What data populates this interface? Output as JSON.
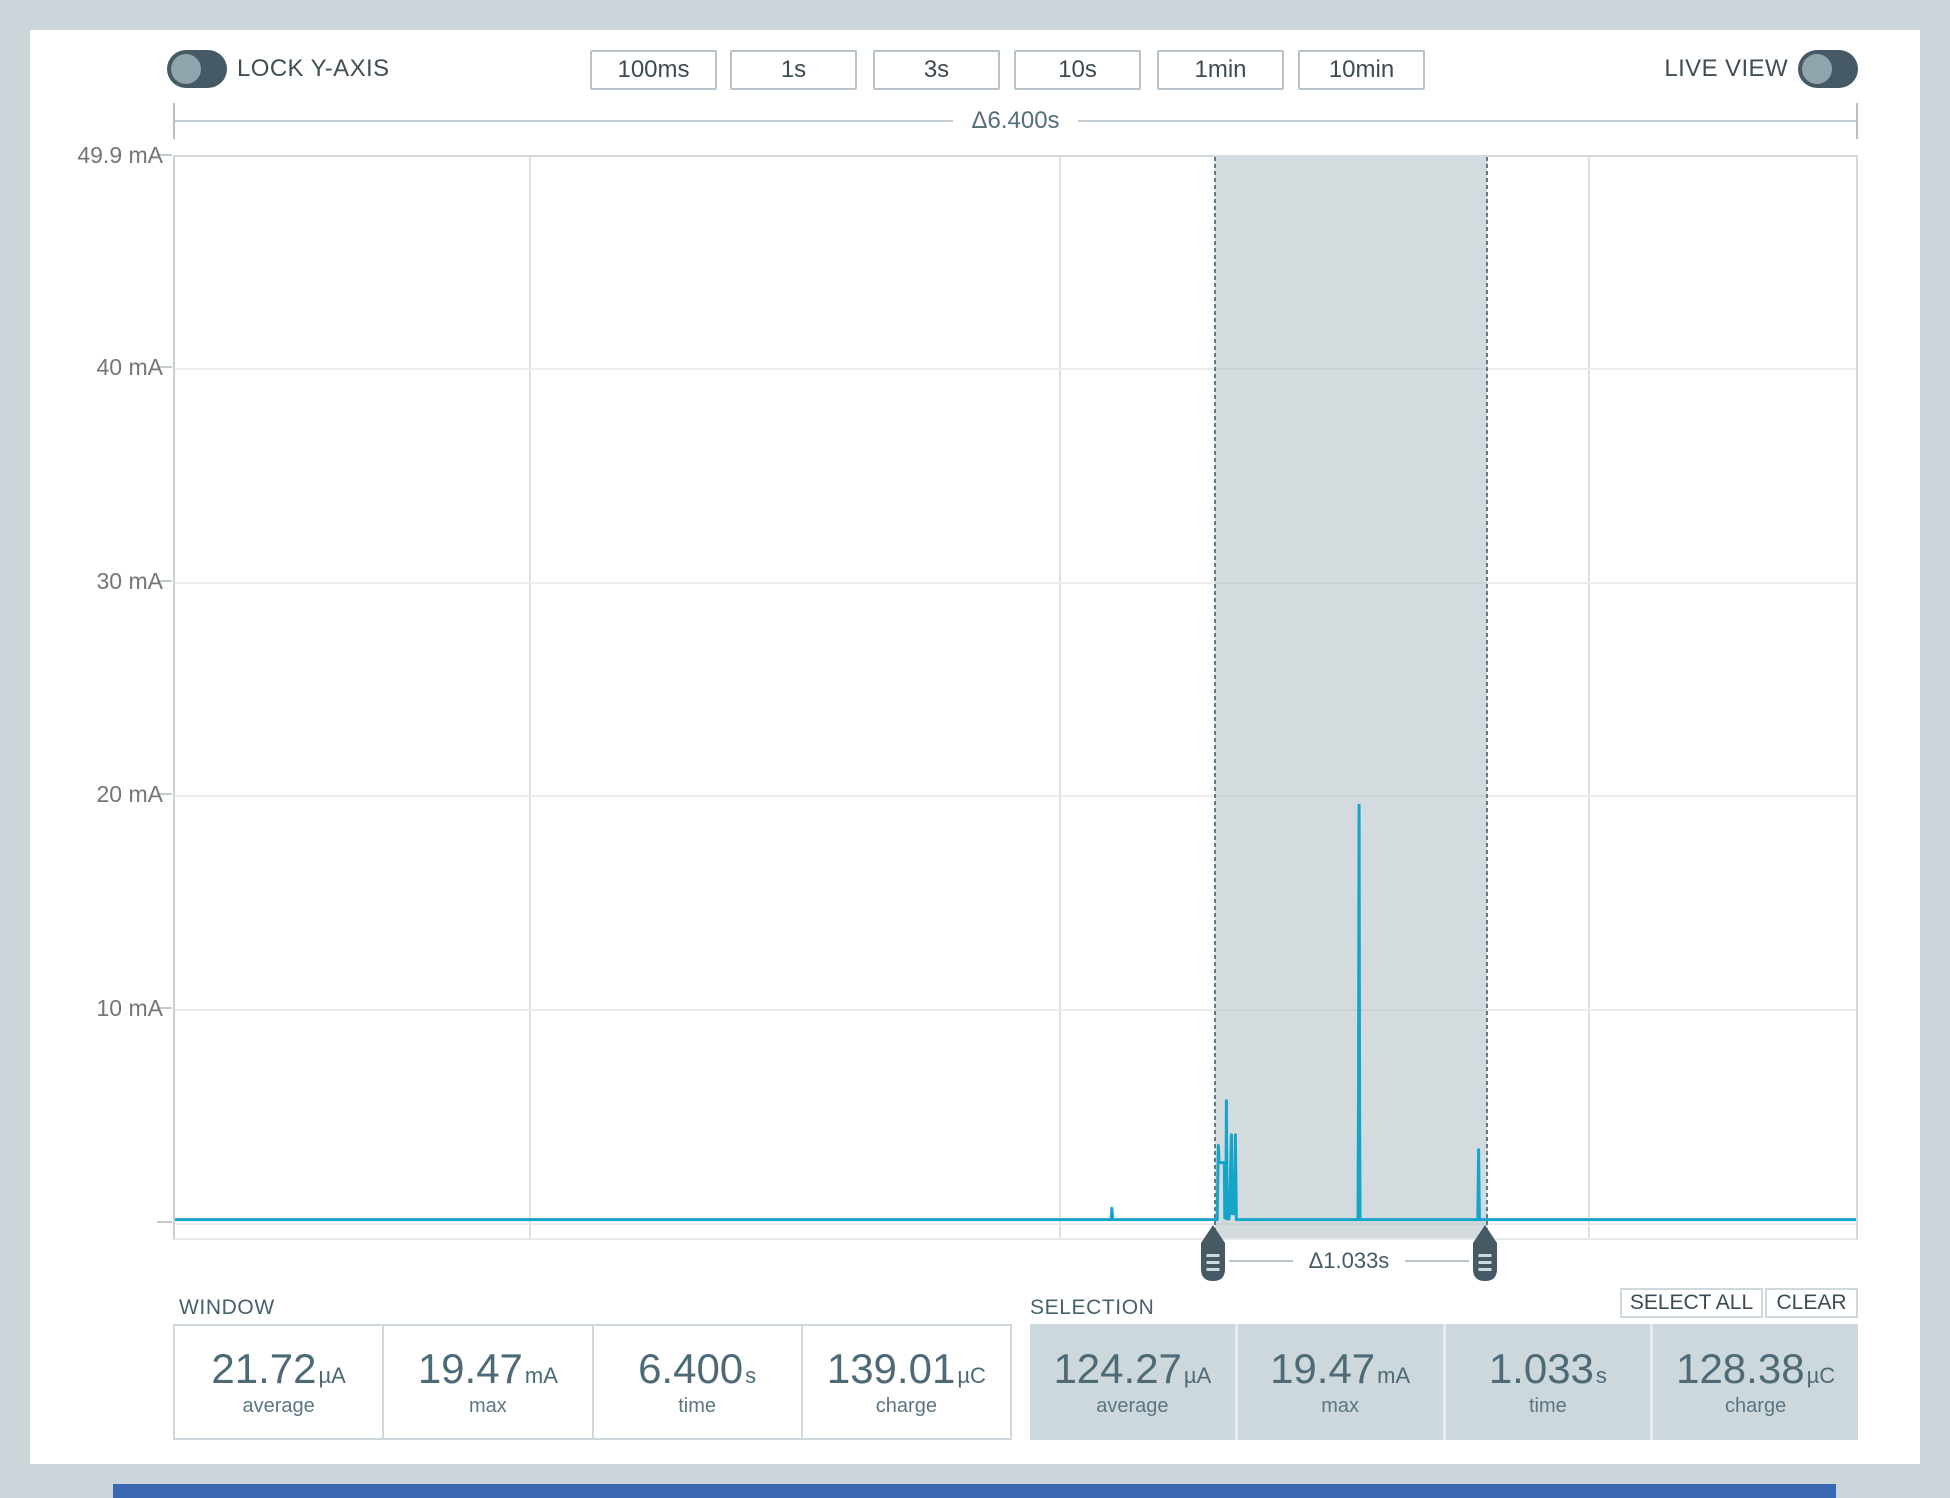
{
  "colors": {
    "background": "#ccd5da",
    "card": "#ffffff",
    "trace": "#14a5c9",
    "selection_fill": "rgba(176,190,197,0.55)",
    "selection_edge": "#5f7a87",
    "handle": "#455a64",
    "toggle_track": "#455a64",
    "toggle_knob": "#90a4ae",
    "stat_text": "#4d6a76",
    "bottom_strip": "#3a68b2"
  },
  "toolbar": {
    "lock_y_axis_label": "LOCK Y-AXIS",
    "lock_y_axis_enabled": false,
    "window_buttons": [
      "100ms",
      "1s",
      "3s",
      "10s",
      "1min",
      "10min"
    ],
    "live_view_label": "LIVE VIEW",
    "live_view_enabled": false
  },
  "chart": {
    "window_delta_label": "Δ6.400s",
    "selection_delta_label": "Δ1.033s"
  },
  "chart_data": {
    "type": "line",
    "x_unit": "s",
    "y_unit": "mA",
    "x_range": [
      0,
      6.4
    ],
    "y_max": 49.9,
    "grid": true,
    "y_ticks": [
      {
        "value": 49.9,
        "label": "49.9 mA"
      },
      {
        "value": 40,
        "label": "40 mA"
      },
      {
        "value": 30,
        "label": "30 mA"
      },
      {
        "value": 20,
        "label": "20 mA"
      },
      {
        "value": 10,
        "label": "10 mA"
      },
      {
        "value": 0,
        "label": ""
      }
    ],
    "x_gridlines_s": [
      1.35,
      3.36,
      5.37
    ],
    "selection": {
      "start_s": 3.95,
      "end_s": 4.983
    },
    "baseline_mA": 0.02,
    "trace": [
      [
        0,
        0.02
      ],
      [
        3.564,
        0.02
      ],
      [
        3.567,
        0.55
      ],
      [
        3.57,
        0.02
      ],
      [
        3.968,
        0.02
      ],
      [
        3.97,
        1.7
      ],
      [
        3.972,
        3.5
      ],
      [
        3.975,
        2.7
      ],
      [
        3.995,
        2.7
      ],
      [
        3.997,
        0.1
      ],
      [
        4.001,
        0.1
      ],
      [
        4.003,
        5.6
      ],
      [
        4.006,
        0.05
      ],
      [
        4.012,
        0.05
      ],
      [
        4.015,
        0.3
      ],
      [
        4.022,
        4.0
      ],
      [
        4.026,
        0.3
      ],
      [
        4.034,
        0.3
      ],
      [
        4.037,
        4.0
      ],
      [
        4.041,
        0.02
      ],
      [
        4.504,
        0.02
      ],
      [
        4.506,
        5.5
      ],
      [
        4.508,
        19.47
      ],
      [
        4.51,
        5.5
      ],
      [
        4.512,
        0.02
      ],
      [
        4.96,
        0.02
      ],
      [
        4.963,
        3.3
      ],
      [
        4.966,
        0.02
      ],
      [
        6.4,
        0.02
      ]
    ]
  },
  "window_stats": {
    "title": "WINDOW",
    "stats": [
      {
        "value": "21.72",
        "unit": "µA",
        "label": "average"
      },
      {
        "value": "19.47",
        "unit": "mA",
        "label": "max"
      },
      {
        "value": "6.400",
        "unit": "s",
        "label": "time"
      },
      {
        "value": "139.01",
        "unit": "µC",
        "label": "charge"
      }
    ]
  },
  "selection_stats": {
    "title": "SELECTION",
    "select_all_label": "SELECT ALL",
    "clear_label": "CLEAR",
    "stats": [
      {
        "value": "124.27",
        "unit": "µA",
        "label": "average"
      },
      {
        "value": "19.47",
        "unit": "mA",
        "label": "max"
      },
      {
        "value": "1.033",
        "unit": "s",
        "label": "time"
      },
      {
        "value": "128.38",
        "unit": "µC",
        "label": "charge"
      }
    ]
  }
}
